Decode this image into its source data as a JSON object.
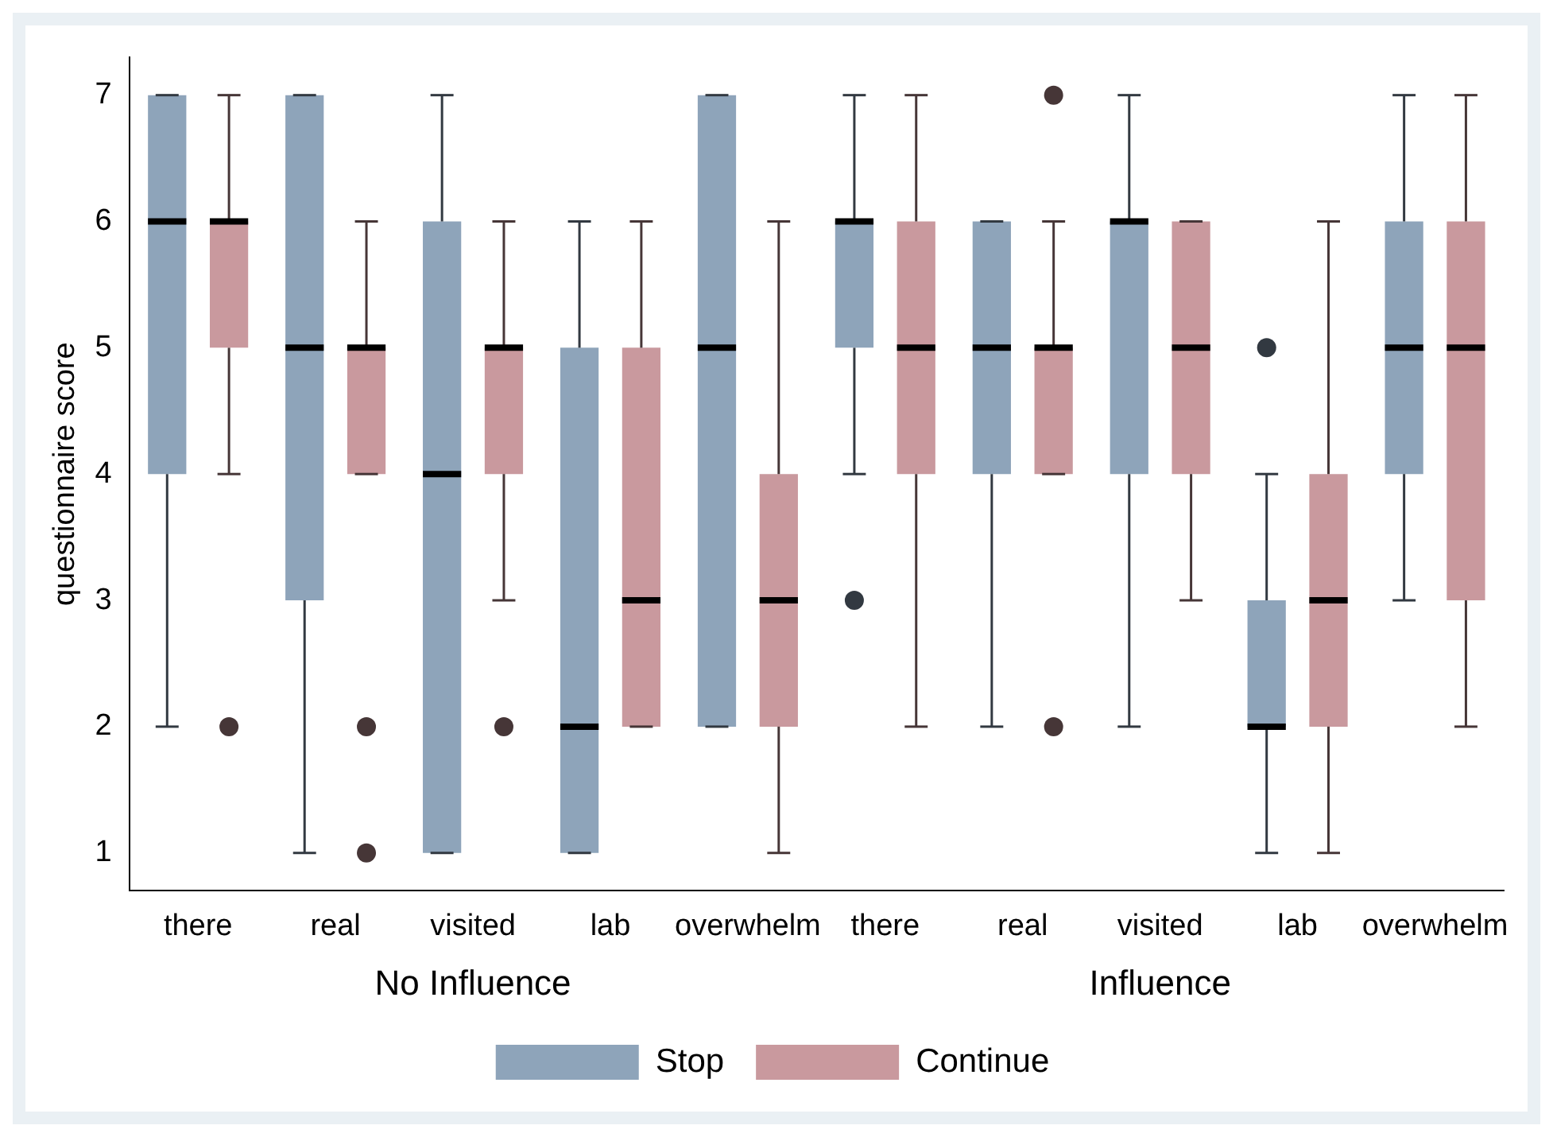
{
  "chart_data": {
    "type": "box",
    "ylabel": "questionnaire score",
    "categories": [
      "there",
      "real",
      "visited",
      "lab",
      "overwhelm",
      "there",
      "real",
      "visited",
      "lab",
      "overwhelm"
    ],
    "annotations": [
      "No Influence",
      "Influence"
    ],
    "ylim": [
      0.7,
      7.3
    ],
    "yticks": [
      1,
      2,
      3,
      4,
      5,
      6,
      7
    ],
    "grid": false,
    "legend": "bottom",
    "series": [
      {
        "name": "Stop",
        "color": "#8ea4ba",
        "boxes": [
          {
            "low": 2,
            "q1": 4,
            "median": 6,
            "q3": 7,
            "high": 7
          },
          {
            "low": 1,
            "q1": 3,
            "median": 5,
            "q3": 7,
            "high": 7
          },
          {
            "low": 1,
            "q1": 1,
            "median": 4,
            "q3": 6,
            "high": 7
          },
          {
            "low": 1,
            "q1": 1,
            "median": 2,
            "q3": 5,
            "high": 6
          },
          {
            "low": 2,
            "q1": 2,
            "median": 5,
            "q3": 7,
            "high": 7
          },
          {
            "low": 4,
            "q1": 5,
            "median": 6,
            "q3": 6,
            "high": 7,
            "outliers": [
              3
            ]
          },
          {
            "low": 2,
            "q1": 4,
            "median": 5,
            "q3": 6,
            "high": 6
          },
          {
            "low": 2,
            "q1": 4,
            "median": 6,
            "q3": 6,
            "high": 7
          },
          {
            "low": 1,
            "q1": 2,
            "median": 2,
            "q3": 3,
            "high": 4,
            "outliers": [
              5
            ]
          },
          {
            "low": 3,
            "q1": 4,
            "median": 5,
            "q3": 6,
            "high": 7
          }
        ]
      },
      {
        "name": "Continue",
        "color": "#c9999e",
        "boxes": [
          {
            "low": 4,
            "q1": 5,
            "median": 6,
            "q3": 6,
            "high": 7,
            "outliers": [
              2
            ]
          },
          {
            "low": 4,
            "q1": 4,
            "median": 5,
            "q3": 5,
            "high": 6,
            "outliers": [
              2,
              1
            ]
          },
          {
            "low": 3,
            "q1": 4,
            "median": 5,
            "q3": 5,
            "high": 6,
            "outliers": [
              2
            ]
          },
          {
            "low": 2,
            "q1": 2,
            "median": 3,
            "q3": 5,
            "high": 6
          },
          {
            "low": 1,
            "q1": 2,
            "median": 3,
            "q3": 4,
            "high": 6
          },
          {
            "low": 2,
            "q1": 4,
            "median": 5,
            "q3": 6,
            "high": 7
          },
          {
            "low": 4,
            "q1": 4,
            "median": 5,
            "q3": 5,
            "high": 6,
            "outliers": [
              7,
              2
            ]
          },
          {
            "low": 3,
            "q1": 4,
            "median": 5,
            "q3": 6,
            "high": 6
          },
          {
            "low": 1,
            "q1": 2,
            "median": 3,
            "q3": 4,
            "high": 6
          },
          {
            "low": 2,
            "q1": 3,
            "median": 5,
            "q3": 6,
            "high": 7
          }
        ]
      }
    ]
  }
}
